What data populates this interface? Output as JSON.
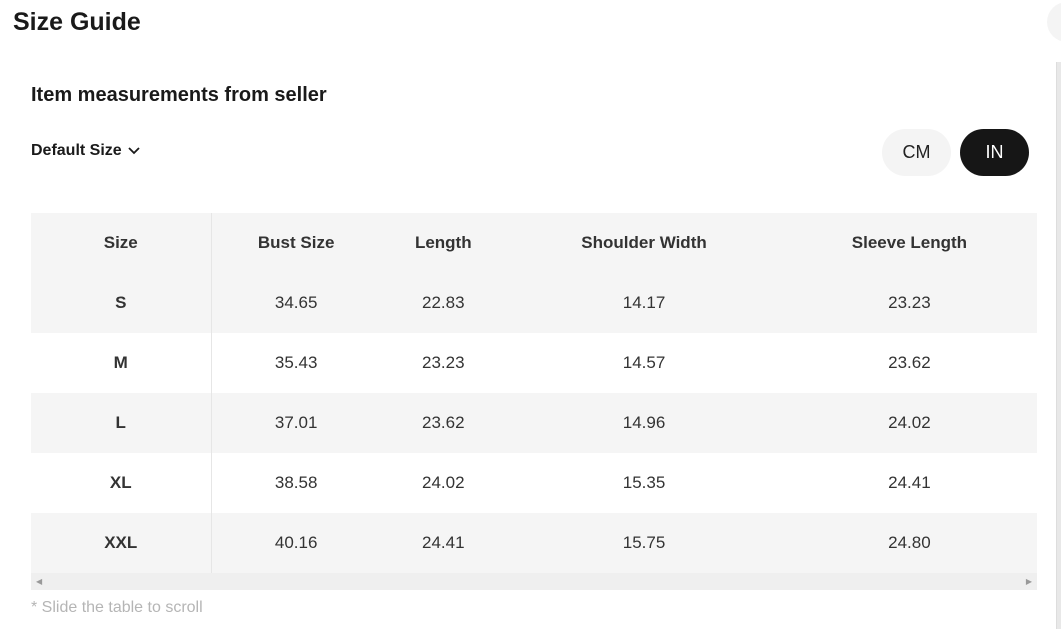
{
  "title": "Size Guide",
  "subtitle": "Item measurements from seller",
  "size_select": "Default Size",
  "units": {
    "cm": "CM",
    "in": "IN",
    "selected": "IN"
  },
  "table": {
    "headers": [
      "Size",
      "Bust Size",
      "Length",
      "Shoulder Width",
      "Sleeve Length"
    ],
    "rows": [
      [
        "S",
        "34.65",
        "22.83",
        "14.17",
        "23.23"
      ],
      [
        "M",
        "35.43",
        "23.23",
        "14.57",
        "23.62"
      ],
      [
        "L",
        "37.01",
        "23.62",
        "14.96",
        "24.02"
      ],
      [
        "XL",
        "38.58",
        "24.02",
        "15.35",
        "24.41"
      ],
      [
        "XXL",
        "40.16",
        "24.41",
        "15.75",
        "24.80"
      ]
    ]
  },
  "note": "* Slide the table to scroll"
}
